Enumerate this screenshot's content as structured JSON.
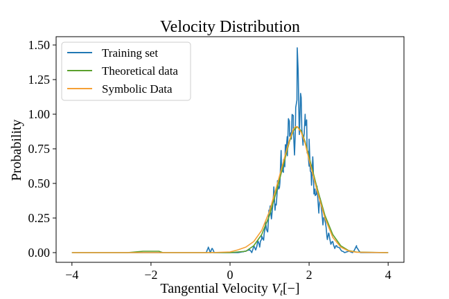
{
  "chart_data": {
    "type": "line",
    "title": "Velocity Distribution",
    "xlabel": "Tangential Velocity V_t[−]",
    "xlabel_main": "Tangential Velocity ",
    "xlabel_var": "V",
    "xlabel_sub": "t",
    "xlabel_unit": "[−]",
    "ylabel": "Probability",
    "xlim": [
      -4.4,
      4.4
    ],
    "ylim": [
      -0.07,
      1.56
    ],
    "xticks": [
      -4,
      -2,
      0,
      2,
      4
    ],
    "xtick_labels": [
      "−4",
      "−2",
      "0",
      "2",
      "4"
    ],
    "yticks": [
      0.0,
      0.25,
      0.5,
      0.75,
      1.0,
      1.25,
      1.5
    ],
    "ytick_labels": [
      "0.00",
      "0.25",
      "0.50",
      "0.75",
      "1.00",
      "1.25",
      "1.50"
    ],
    "legend_position": "top-left",
    "grid": false,
    "series": [
      {
        "name": "Training set",
        "color": "#1f77b4",
        "style": "noisy",
        "x": [
          -4.0,
          -0.6,
          -0.55,
          -0.5,
          -0.45,
          -0.4,
          -0.2,
          0.0,
          0.2,
          0.4,
          0.5,
          0.55,
          0.6,
          0.65,
          0.7,
          0.75,
          0.8,
          0.85,
          0.9,
          0.95,
          1.0,
          1.05,
          1.1,
          1.15,
          1.2,
          1.25,
          1.3,
          1.35,
          1.4,
          1.45,
          1.5,
          1.55,
          1.6,
          1.65,
          1.7,
          1.75,
          1.8,
          1.85,
          1.9,
          1.95,
          2.0,
          2.05,
          2.1,
          2.15,
          2.2,
          2.25,
          2.3,
          2.35,
          2.4,
          2.45,
          2.5,
          2.55,
          2.6,
          2.65,
          2.7,
          2.8,
          2.9,
          3.0,
          3.1,
          3.2,
          3.3,
          4.0
        ],
        "y": [
          0.0,
          0.0,
          0.04,
          0.0,
          0.03,
          0.0,
          0.0,
          0.0,
          0.0,
          0.01,
          0.02,
          0.0,
          0.05,
          0.02,
          0.08,
          0.04,
          0.12,
          0.09,
          0.22,
          0.15,
          0.3,
          0.25,
          0.42,
          0.35,
          0.52,
          0.47,
          0.62,
          0.58,
          0.78,
          0.7,
          0.95,
          0.82,
          0.9,
          0.86,
          1.48,
          0.88,
          1.12,
          0.8,
          1.0,
          0.72,
          0.82,
          0.58,
          0.65,
          0.46,
          0.48,
          0.32,
          0.36,
          0.2,
          0.24,
          0.12,
          0.14,
          0.06,
          0.08,
          0.03,
          0.05,
          0.02,
          0.0,
          0.01,
          0.0,
          0.04,
          0.0,
          0.0
        ]
      },
      {
        "name": "Theoretical data",
        "color": "#5aa02c",
        "style": "smooth",
        "x": [
          -4.0,
          -2.6,
          -2.2,
          -1.8,
          -1.7,
          -1.0,
          0.0,
          0.4,
          0.6,
          0.8,
          1.0,
          1.2,
          1.4,
          1.5,
          1.6,
          1.7,
          1.8,
          1.9,
          2.0,
          2.2,
          2.4,
          2.6,
          2.8,
          3.0,
          3.2,
          4.0
        ],
        "y": [
          0.0,
          0.0,
          0.01,
          0.01,
          0.0,
          0.0,
          0.0,
          0.01,
          0.05,
          0.13,
          0.27,
          0.47,
          0.69,
          0.8,
          0.88,
          0.91,
          0.88,
          0.8,
          0.69,
          0.47,
          0.27,
          0.13,
          0.05,
          0.015,
          0.004,
          0.0
        ]
      },
      {
        "name": "Symbolic Data",
        "color": "#f5a034",
        "style": "smooth",
        "x": [
          -4.0,
          -2.0,
          -1.0,
          -0.5,
          0.0,
          0.2,
          0.4,
          0.6,
          0.8,
          1.0,
          1.2,
          1.4,
          1.5,
          1.6,
          1.65,
          1.7,
          1.8,
          1.9,
          2.0,
          2.2,
          2.4,
          2.6,
          2.8,
          3.0,
          3.2,
          4.0
        ],
        "y": [
          0.0,
          0.0,
          0.0,
          0.0,
          0.005,
          0.02,
          0.04,
          0.08,
          0.16,
          0.3,
          0.5,
          0.71,
          0.81,
          0.89,
          0.91,
          0.91,
          0.87,
          0.79,
          0.67,
          0.45,
          0.25,
          0.11,
          0.04,
          0.012,
          0.003,
          0.0
        ]
      }
    ]
  }
}
